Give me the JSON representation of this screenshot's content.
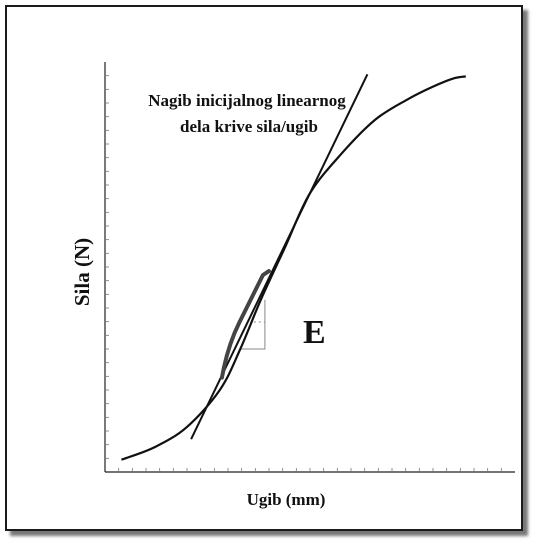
{
  "chart_data": {
    "type": "line",
    "xlabel": "Ugib (mm)",
    "ylabel": "Sila (N)",
    "annotation": "Nagib inicijalnog linearnog dela krive sila/ugib",
    "annotation_lines": [
      "Nagib inicijalnog linearnog",
      "dela krive sila/ugib"
    ],
    "slope_label": "E",
    "xlim": [
      0,
      100
    ],
    "ylim": [
      0,
      100
    ],
    "grid": false,
    "series": [
      {
        "values_x": [
          4,
          12,
          20,
          28,
          33,
          38,
          44,
          50,
          58,
          66,
          74,
          80,
          85,
          88
        ],
        "values_y": [
          3,
          6,
          11,
          20,
          30,
          42,
          55,
          68,
          78,
          86,
          91,
          94,
          96,
          96.5
        ]
      }
    ],
    "tangent": {
      "x": [
        21,
        64
      ],
      "y": [
        8,
        97
      ]
    },
    "highlight": {
      "x": [
        29,
        39
      ],
      "y": [
        24,
        49
      ]
    },
    "slope_triangle": {
      "x": [
        33,
        39
      ],
      "y": [
        30,
        42
      ]
    },
    "colors": {
      "line": "#111111",
      "highlight": "#444444",
      "triangle": "#888888"
    }
  }
}
